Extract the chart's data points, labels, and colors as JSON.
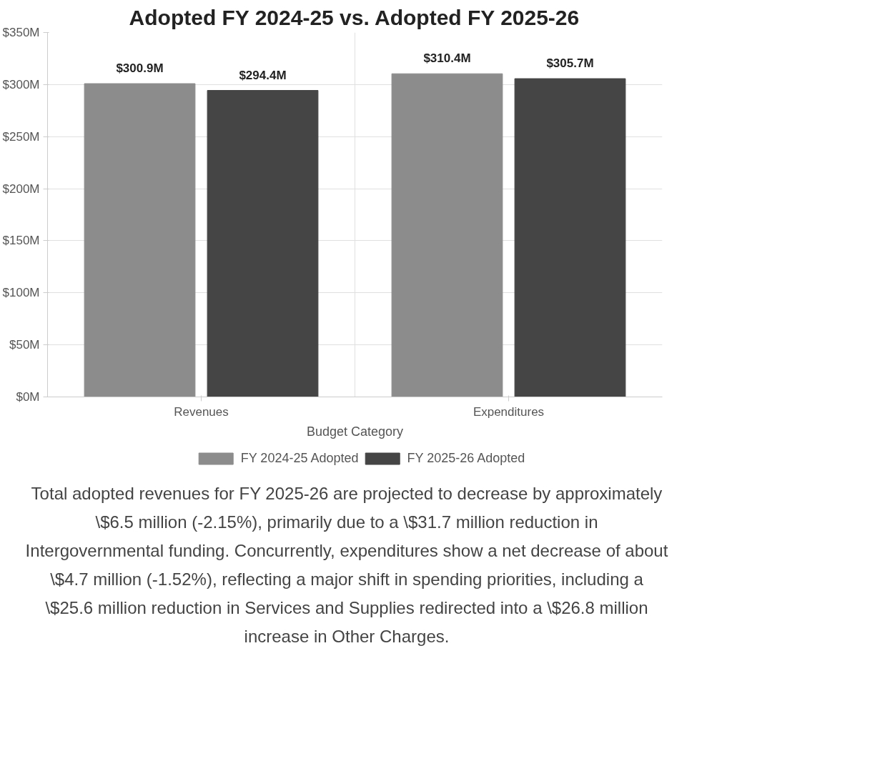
{
  "chart_data": {
    "type": "bar",
    "title": "Adopted FY 2024-25 vs. Adopted FY 2025-26",
    "xlabel": "Budget Category",
    "categories": [
      "Revenues",
      "Expenditures"
    ],
    "series": [
      {
        "name": "FY 2024-25 Adopted",
        "color": "#8c8c8c",
        "values": [
          300.9,
          310.4
        ],
        "value_labels": [
          "$300.9M",
          "$310.4M"
        ]
      },
      {
        "name": "FY 2025-26 Adopted",
        "color": "#454545",
        "values": [
          294.4,
          305.7
        ],
        "value_labels": [
          "$294.4M",
          "$305.7M"
        ]
      }
    ],
    "ylim": [
      0,
      350
    ],
    "yticks": [
      {
        "value": 0,
        "label": "$0M"
      },
      {
        "value": 50,
        "label": "$50M"
      },
      {
        "value": 100,
        "label": "$100M"
      },
      {
        "value": 150,
        "label": "$150M"
      },
      {
        "value": 200,
        "label": "$200M"
      },
      {
        "value": 250,
        "label": "$250M"
      },
      {
        "value": 300,
        "label": "$300M"
      },
      {
        "value": 350,
        "label": "$350M"
      }
    ],
    "grid": true,
    "legend": "bottom",
    "annotations": [
      "Total adopted revenues for FY 2025-26 are projected to decrease by approximately \\$6.5 million (-2.15%), primarily due to a \\$31.7 million reduction in Intergovernmental funding. Concurrently, expenditures show a net decrease of about \\$4.7 million (-1.52%), reflecting a major shift in spending priorities, including a \\$25.6 million reduction in Services and Supplies redirected into a \\$26.8 million increase in Other Charges."
    ]
  }
}
